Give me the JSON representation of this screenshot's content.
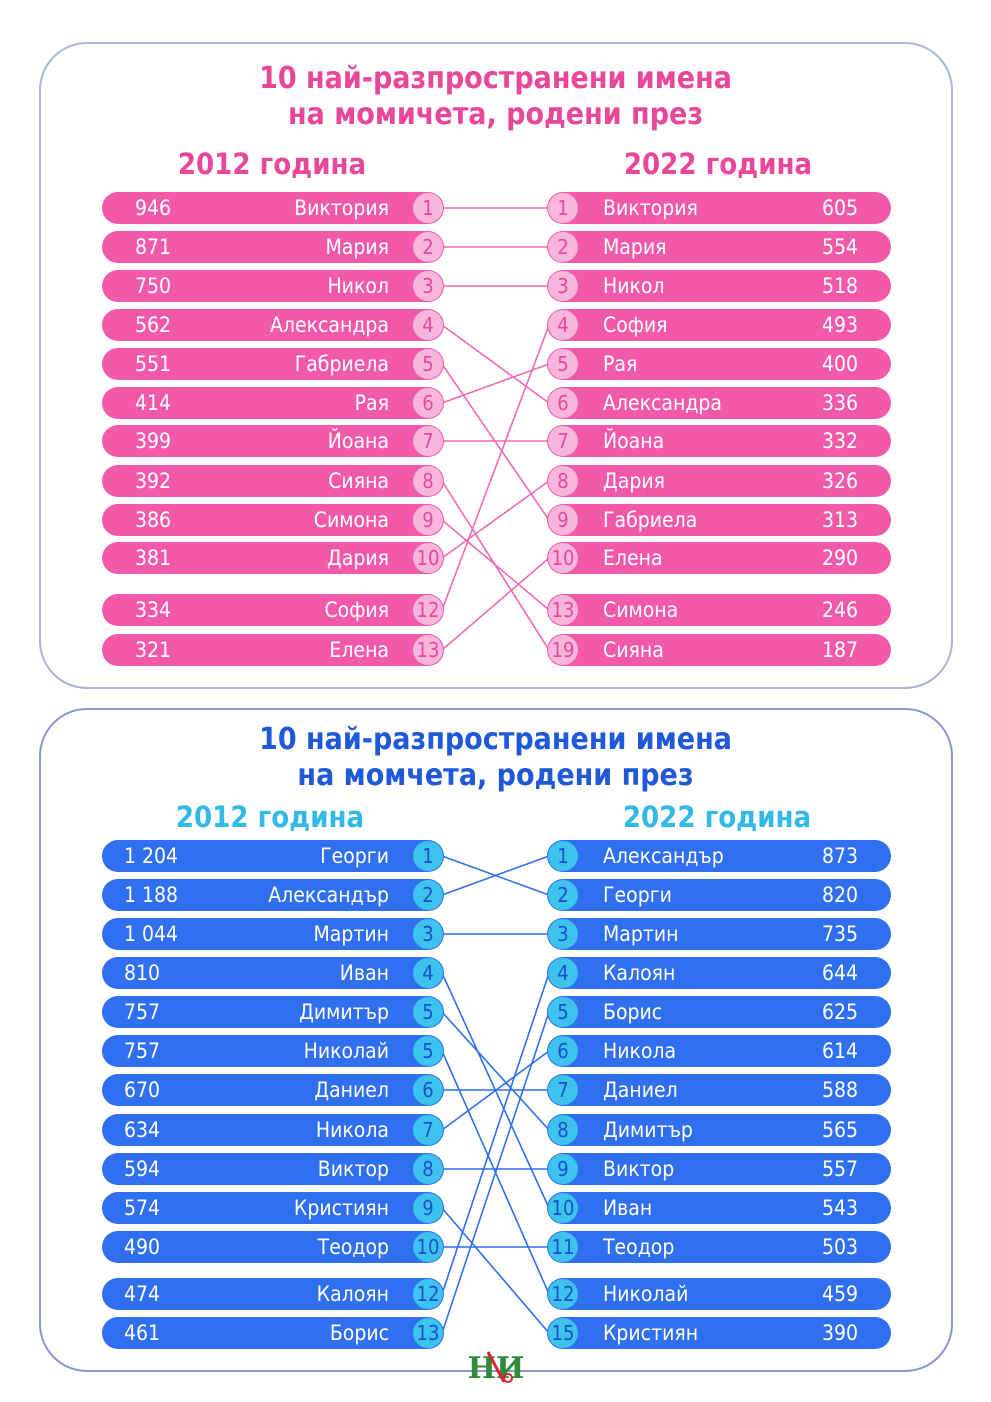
{
  "colors": {
    "girls_bar": "#f25aa9",
    "girls_badge": "#f9b6dc",
    "girls_badge_text": "#e8479a",
    "girls_title": "#e8479a",
    "girls_line": "#f06ab2",
    "boys_bar": "#2f6ff0",
    "boys_badge": "#3dc3ee",
    "boys_badge_text": "#1a4fcf",
    "boys_title": "#1f58d8",
    "boys_year": "#33b9e8",
    "boys_line": "#2f6ff0"
  },
  "chart_data": [
    {
      "type": "table",
      "title_line1": "10 най-разпространени имена",
      "title_line2": "на момичета, родени през",
      "left_year": "2012 година",
      "right_year": "2022 година",
      "left": [
        {
          "count": "946",
          "name": "Виктория",
          "rank": "1"
        },
        {
          "count": "871",
          "name": "Мария",
          "rank": "2"
        },
        {
          "count": "750",
          "name": "Никол",
          "rank": "3"
        },
        {
          "count": "562",
          "name": "Александра",
          "rank": "4"
        },
        {
          "count": "551",
          "name": "Габриела",
          "rank": "5"
        },
        {
          "count": "414",
          "name": "Рая",
          "rank": "6"
        },
        {
          "count": "399",
          "name": "Йоана",
          "rank": "7"
        },
        {
          "count": "392",
          "name": "Сияна",
          "rank": "8"
        },
        {
          "count": "386",
          "name": "Симона",
          "rank": "9"
        },
        {
          "count": "381",
          "name": "Дария",
          "rank": "10"
        },
        {
          "count": "334",
          "name": "София",
          "rank": "12"
        },
        {
          "count": "321",
          "name": "Елена",
          "rank": "13"
        }
      ],
      "right": [
        {
          "rank": "1",
          "name": "Виктория",
          "count": "605"
        },
        {
          "rank": "2",
          "name": "Мария",
          "count": "554"
        },
        {
          "rank": "3",
          "name": "Никол",
          "count": "518"
        },
        {
          "rank": "4",
          "name": "София",
          "count": "493"
        },
        {
          "rank": "5",
          "name": "Рая",
          "count": "400"
        },
        {
          "rank": "6",
          "name": "Александра",
          "count": "336"
        },
        {
          "rank": "7",
          "name": "Йоана",
          "count": "332"
        },
        {
          "rank": "8",
          "name": "Дария",
          "count": "326"
        },
        {
          "rank": "9",
          "name": "Габриела",
          "count": "313"
        },
        {
          "rank": "10",
          "name": "Елена",
          "count": "290"
        },
        {
          "rank": "13",
          "name": "Симона",
          "count": "246"
        },
        {
          "rank": "19",
          "name": "Сияна",
          "count": "187"
        }
      ]
    },
    {
      "type": "table",
      "title_line1": "10 най-разпространени имена",
      "title_line2": "на момчета, родени през",
      "left_year": "2012 година",
      "right_year": "2022 година",
      "left": [
        {
          "count": "1 204",
          "name": "Георги",
          "rank": "1"
        },
        {
          "count": "1 188",
          "name": "Александър",
          "rank": "2"
        },
        {
          "count": "1 044",
          "name": "Мартин",
          "rank": "3"
        },
        {
          "count": "810",
          "name": "Иван",
          "rank": "4"
        },
        {
          "count": "757",
          "name": "Димитър",
          "rank": "5"
        },
        {
          "count": "757",
          "name": "Николай",
          "rank": "5"
        },
        {
          "count": "670",
          "name": "Даниел",
          "rank": "6"
        },
        {
          "count": "634",
          "name": "Никола",
          "rank": "7"
        },
        {
          "count": "594",
          "name": "Виктор",
          "rank": "8"
        },
        {
          "count": "574",
          "name": "Кристиян",
          "rank": "9"
        },
        {
          "count": "490",
          "name": "Теодор",
          "rank": "10"
        },
        {
          "count": "474",
          "name": "Калоян",
          "rank": "12"
        },
        {
          "count": "461",
          "name": "Борис",
          "rank": "13"
        }
      ],
      "right": [
        {
          "rank": "1",
          "name": "Александър",
          "count": "873"
        },
        {
          "rank": "2",
          "name": "Георги",
          "count": "820"
        },
        {
          "rank": "3",
          "name": "Мартин",
          "count": "735"
        },
        {
          "rank": "4",
          "name": "Калоян",
          "count": "644"
        },
        {
          "rank": "5",
          "name": "Борис",
          "count": "625"
        },
        {
          "rank": "6",
          "name": "Никола",
          "count": "614"
        },
        {
          "rank": "7",
          "name": "Даниел",
          "count": "588"
        },
        {
          "rank": "8",
          "name": "Димитър",
          "count": "565"
        },
        {
          "rank": "9",
          "name": "Виктор",
          "count": "557"
        },
        {
          "rank": "10",
          "name": "Иван",
          "count": "543"
        },
        {
          "rank": "11",
          "name": "Теодор",
          "count": "503"
        },
        {
          "rank": "12",
          "name": "Николай",
          "count": "459"
        },
        {
          "rank": "15",
          "name": "Кристиян",
          "count": "390"
        }
      ]
    }
  ],
  "logo": {
    "name": "nsi-logo-icon",
    "text": "НИ"
  }
}
